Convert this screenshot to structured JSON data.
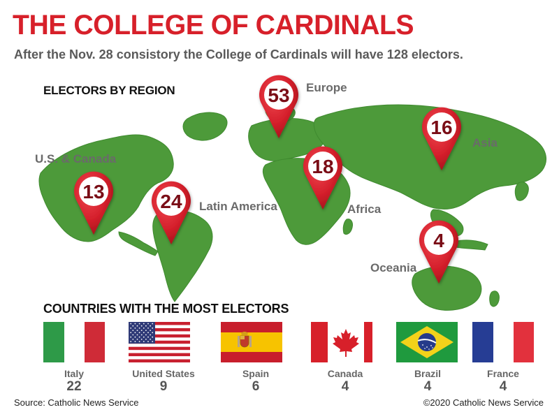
{
  "header": {
    "title": "THE COLLEGE OF CARDINALS",
    "subtitle": "After the Nov. 28 consistory the College of Cardinals will have 128 electors."
  },
  "regions_section": {
    "heading": "ELECTORS BY REGION",
    "regions": [
      {
        "name": "U.S. & Canada",
        "electors": "13"
      },
      {
        "name": "Latin America",
        "electors": "24"
      },
      {
        "name": "Europe",
        "electors": "53"
      },
      {
        "name": "Africa",
        "electors": "18"
      },
      {
        "name": "Asia",
        "electors": "16"
      },
      {
        "name": "Oceania",
        "electors": "4"
      }
    ]
  },
  "countries_section": {
    "heading": "COUNTRIES WITH THE MOST ELECTORS",
    "countries": [
      {
        "name": "Italy",
        "electors": "22",
        "flag": "italy-flag"
      },
      {
        "name": "United States",
        "electors": "9",
        "flag": "united-states-flag"
      },
      {
        "name": "Spain",
        "electors": "6",
        "flag": "spain-flag"
      },
      {
        "name": "Canada",
        "electors": "4",
        "flag": "canada-flag"
      },
      {
        "name": "Brazil",
        "electors": "4",
        "flag": "brazil-flag"
      },
      {
        "name": "France",
        "electors": "4",
        "flag": "france-flag"
      }
    ]
  },
  "footer": {
    "source": "Source: Catholic News Service",
    "copyright": "©2020 Catholic News Service"
  },
  "colors": {
    "title_red": "#d7202a",
    "land_green": "#4d9a3a",
    "pin_red": "#d41f2b"
  }
}
